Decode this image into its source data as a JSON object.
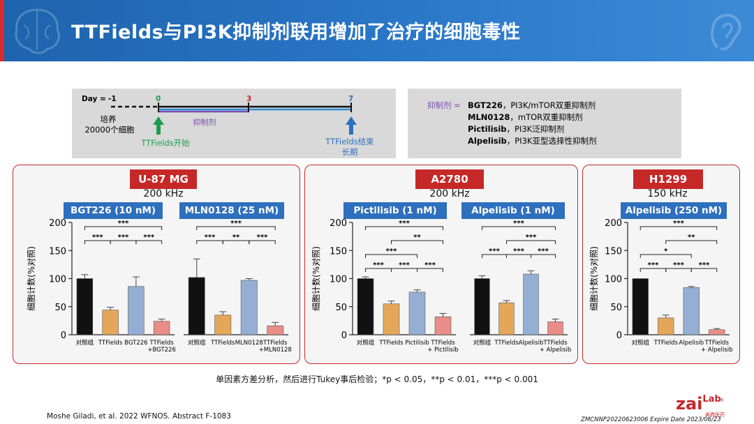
{
  "slide": {
    "title": "TTFields与PI3K抑制剂联用增加了治疗的细胞毒性",
    "footnote": "单因素方差分析，然后进行Tukey事后检验；*p < 0.05，**p < 0.01，***p < 0.001",
    "citation": "Moshe Giladi, et al. 2022 WFNOS. Abstract F-1083",
    "doc_id": "ZMCNNP20220623006 Expire Date 2023/06/23",
    "brand": "zai",
    "brand_suffix": "Lab",
    "brand_sub": "再鼎医药",
    "page_number": "8",
    "colors": {
      "banner": "#1e63ad",
      "accent_red": "#c62828",
      "drug_blue": "#2e6fbe"
    }
  },
  "timeline": {
    "day_label": "Day =",
    "days": [
      "-1",
      "0",
      "3",
      "7"
    ],
    "culture_label": "培养",
    "cells_label": "20000个细胞",
    "inhibitor_label": "抑制剂",
    "start_label": "TTFields开始",
    "end_label": "TTFields结束",
    "end_sub": "长期",
    "colors": {
      "start": "#1e9b4e",
      "day3": "#c62828",
      "day7": "#2e6fbe",
      "inhibitor": "#7b4fb0"
    }
  },
  "legend": {
    "prefix": "抑制剂 =",
    "items": [
      {
        "name": "BGT226",
        "desc": "，PI3K/mTOR双重抑制剂"
      },
      {
        "name": "MLN0128",
        "desc": "，mTOR双重抑制剂"
      },
      {
        "name": "Pictilisib",
        "desc": "，PI3K泛抑制剂"
      },
      {
        "name": "Alpelisib",
        "desc": "，PI3K亚型选择性抑制剂"
      }
    ]
  },
  "chart_data": [
    {
      "type": "bar",
      "cell_line": "U-87 MG",
      "frequency": "200 kHz",
      "drug": "BGT226 (10 nM)",
      "ylabel": "细胞计数(%对照)",
      "ylim": [
        0,
        200
      ],
      "yticks": [
        0,
        50,
        100,
        150,
        200
      ],
      "categories": [
        "对照组",
        "TTFields",
        "BGT226",
        "TTFields\n+BGT226"
      ],
      "values": [
        100,
        44,
        86,
        24
      ],
      "errors": [
        7,
        5,
        17,
        4
      ],
      "colors": [
        "#111111",
        "#e4a75a",
        "#95aed4",
        "#e98d88"
      ],
      "significance": [
        {
          "from": 0,
          "to": 1,
          "label": "***"
        },
        {
          "from": 1,
          "to": 2,
          "label": "***"
        },
        {
          "from": 2,
          "to": 3,
          "label": "***"
        },
        {
          "from": 0,
          "to": 3,
          "label": "***"
        }
      ]
    },
    {
      "type": "bar",
      "cell_line": "U-87 MG",
      "frequency": "200 kHz",
      "drug": "MLN0128 (25 nM)",
      "ylim": [
        0,
        200
      ],
      "categories": [
        "对照组",
        "TTFields",
        "MLN0128",
        "TTFields\n+MLN0128"
      ],
      "values": [
        102,
        35,
        97,
        16
      ],
      "errors": [
        33,
        6,
        3,
        6
      ],
      "colors": [
        "#111111",
        "#e4a75a",
        "#95aed4",
        "#e98d88"
      ],
      "significance": [
        {
          "from": 0,
          "to": 1,
          "label": "***"
        },
        {
          "from": 1,
          "to": 2,
          "label": "**"
        },
        {
          "from": 2,
          "to": 3,
          "label": "***"
        },
        {
          "from": 0,
          "to": 3,
          "label": "***"
        }
      ]
    },
    {
      "type": "bar",
      "cell_line": "A2780",
      "frequency": "200 kHz",
      "drug": "Pictilisib (1 nM)",
      "ylabel": "细胞计数(%对照)",
      "ylim": [
        0,
        200
      ],
      "yticks": [
        0,
        50,
        100,
        150,
        200
      ],
      "categories": [
        "对照组",
        "TTFields",
        "Pictilisib",
        "TTFields\n+ Pictilisib"
      ],
      "values": [
        100,
        55,
        76,
        32
      ],
      "errors": [
        3,
        5,
        4,
        6
      ],
      "colors": [
        "#111111",
        "#e4a75a",
        "#95aed4",
        "#e98d88"
      ],
      "significance": [
        {
          "from": 0,
          "to": 1,
          "label": "***"
        },
        {
          "from": 1,
          "to": 2,
          "label": "***"
        },
        {
          "from": 1,
          "to": 3,
          "label": "**"
        },
        {
          "from": 0,
          "to": 2,
          "label": "***"
        },
        {
          "from": 2,
          "to": 3,
          "label": "***"
        },
        {
          "from": 0,
          "to": 3,
          "label": "***"
        }
      ]
    },
    {
      "type": "bar",
      "cell_line": "A2780",
      "frequency": "200 kHz",
      "drug": "Alpelisib (1 nM)",
      "ylim": [
        0,
        200
      ],
      "categories": [
        "对照组",
        "TTFields",
        "Alpelisib",
        "TTFields\n+ Alpelisib"
      ],
      "values": [
        100,
        57,
        108,
        23
      ],
      "errors": [
        5,
        4,
        6,
        5
      ],
      "colors": [
        "#111111",
        "#e4a75a",
        "#95aed4",
        "#e98d88"
      ],
      "significance": [
        {
          "from": 0,
          "to": 1,
          "label": "***"
        },
        {
          "from": 1,
          "to": 3,
          "label": "***"
        },
        {
          "from": 1,
          "to": 2,
          "label": "***"
        },
        {
          "from": 2,
          "to": 3,
          "label": "***"
        },
        {
          "from": 0,
          "to": 3,
          "label": "***"
        }
      ]
    },
    {
      "type": "bar",
      "cell_line": "H1299",
      "frequency": "150 kHz",
      "drug": "Alpelisib (250 nM)",
      "ylabel": "细胞计数(%对照)",
      "ylim": [
        0,
        200
      ],
      "yticks": [
        0,
        50,
        100,
        150,
        200
      ],
      "categories": [
        "对照组",
        "TTFields",
        "Alpelisib",
        "TTFields\n+ Alpelisib"
      ],
      "values": [
        100,
        30,
        84,
        9
      ],
      "errors": [
        0,
        5,
        2,
        2
      ],
      "colors": [
        "#111111",
        "#e4a75a",
        "#95aed4",
        "#e98d88"
      ],
      "significance": [
        {
          "from": 0,
          "to": 1,
          "label": "***"
        },
        {
          "from": 1,
          "to": 2,
          "label": "***"
        },
        {
          "from": 1,
          "to": 3,
          "label": "**"
        },
        {
          "from": 0,
          "to": 2,
          "label": "*"
        },
        {
          "from": 2,
          "to": 3,
          "label": "***"
        },
        {
          "from": 0,
          "to": 3,
          "label": "***"
        }
      ]
    }
  ]
}
